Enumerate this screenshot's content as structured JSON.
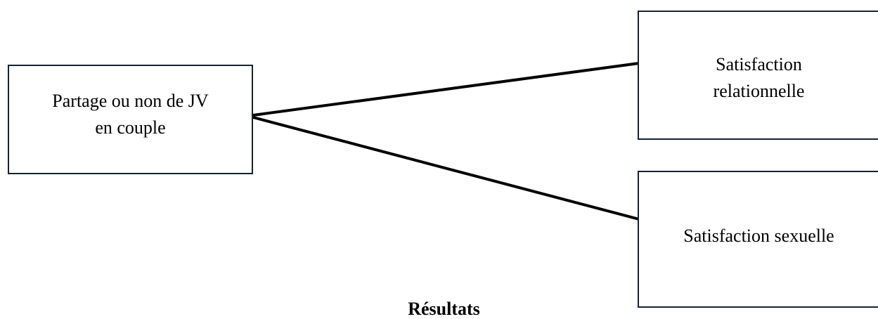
{
  "diagram": {
    "source": {
      "label": "Partage ou non de JV\nen couple"
    },
    "targets": [
      {
        "label": "Satisfaction\nrelationnelle"
      },
      {
        "label": "Satisfaction sexuelle"
      }
    ],
    "caption": "Résultats"
  }
}
